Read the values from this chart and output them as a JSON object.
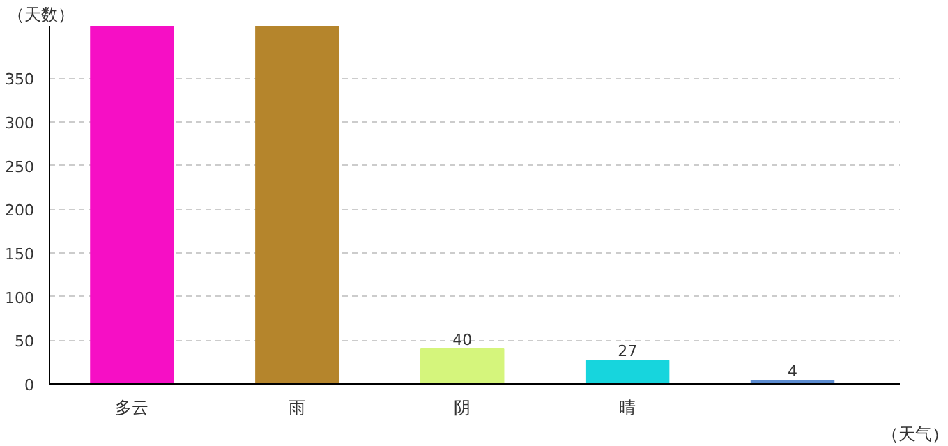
{
  "chart_data": {
    "type": "bar",
    "xlabel": "（天气）",
    "ylabel": "（天数）",
    "categories": [
      "多云",
      "雨",
      "阴",
      "晴",
      null
    ],
    "values": [
      410,
      410,
      40,
      27,
      4
    ],
    "value_labels": [
      null,
      null,
      "40",
      "27",
      "4"
    ],
    "colors": [
      "#f60fc5",
      "#b5852c",
      "#d5f57c",
      "#17d5dd",
      "#5b8bd0"
    ],
    "ylim": [
      0,
      410
    ],
    "yticks": [
      0,
      50,
      100,
      150,
      200,
      250,
      300,
      350
    ],
    "grid": "y"
  }
}
